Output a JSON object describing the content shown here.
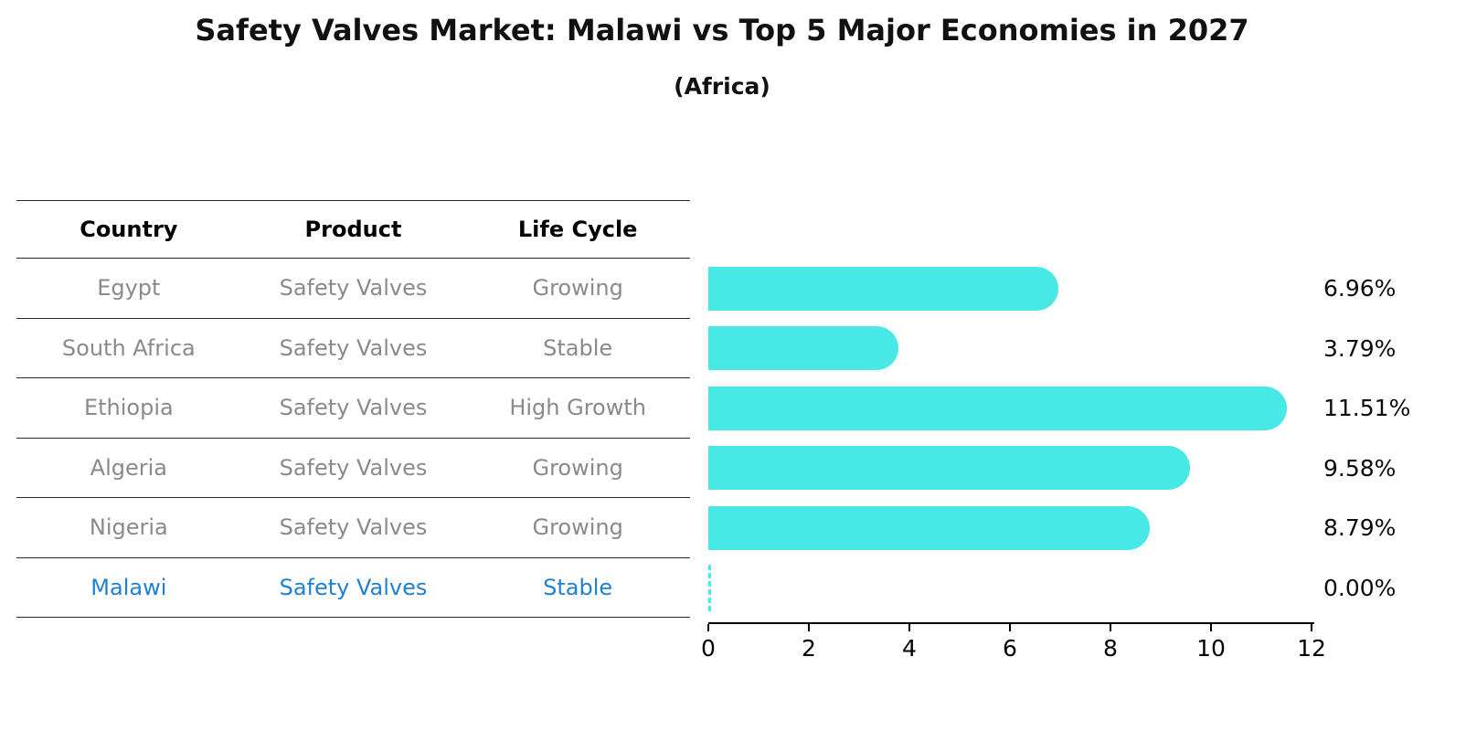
{
  "chart_data": {
    "type": "bar",
    "orientation": "horizontal",
    "title": "Safety Valves Market: Malawi vs Top 5 Major Economies in 2027",
    "subtitle": "(Africa)",
    "columns": {
      "country": "Country",
      "product": "Product",
      "life_cycle": "Life Cycle"
    },
    "xlim": [
      0,
      12
    ],
    "xticks": [
      "0",
      "2",
      "4",
      "6",
      "8",
      "10",
      "12"
    ],
    "grid": false,
    "legend": "none",
    "bar_color": "#47e8e6",
    "highlight_color": "#1f80d4",
    "rows": [
      {
        "country": "Egypt",
        "product": "Safety Valves",
        "life_cycle": "Growing",
        "value": 6.96,
        "label": "6.96%",
        "highlight": false
      },
      {
        "country": "South Africa",
        "product": "Safety Valves",
        "life_cycle": "Stable",
        "value": 3.79,
        "label": "3.79%",
        "highlight": false
      },
      {
        "country": "Ethiopia",
        "product": "Safety Valves",
        "life_cycle": "High Growth",
        "value": 11.51,
        "label": "11.51%",
        "highlight": false
      },
      {
        "country": "Algeria",
        "product": "Safety Valves",
        "life_cycle": "Growing",
        "value": 9.58,
        "label": "9.58%",
        "highlight": false
      },
      {
        "country": "Nigeria",
        "product": "Safety Valves",
        "life_cycle": "Growing",
        "value": 8.79,
        "label": "8.79%",
        "highlight": false
      },
      {
        "country": "Malawi",
        "product": "Safety Valves",
        "life_cycle": "Stable",
        "value": 0.0,
        "label": "0.00%",
        "highlight": true
      }
    ]
  }
}
